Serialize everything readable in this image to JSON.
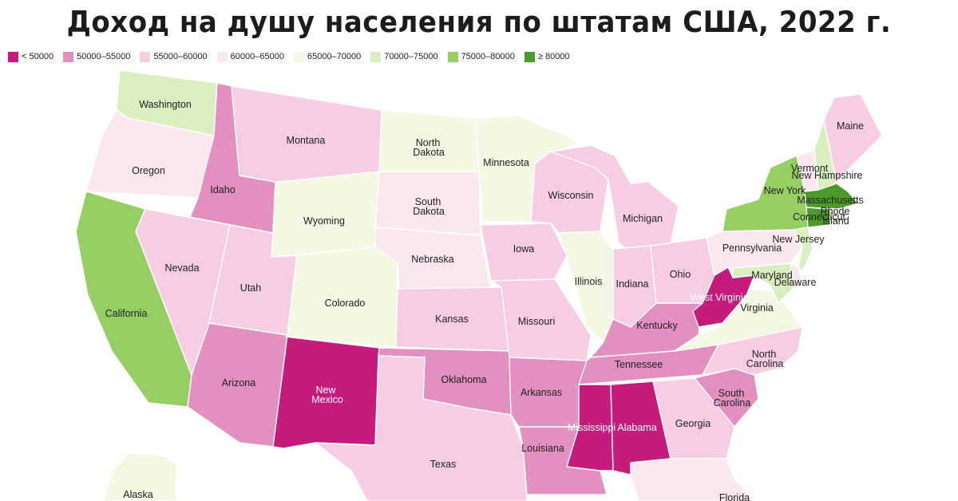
{
  "title": "Доход на душу населения по штатам США, 2022 г.",
  "colors": {
    "c0": "#c51b7d",
    "c1": "#e38fc0",
    "c2": "#f7cde4",
    "c3": "#fbe8ee",
    "c4": "#f4f7e2",
    "c5": "#d9efbf",
    "c6": "#95cf63",
    "c7": "#4c9a2a"
  },
  "legend": [
    {
      "label": "< 50000",
      "color": "#c51b7d"
    },
    {
      "label": "50000–55000",
      "color": "#e38fc0"
    },
    {
      "label": "55000–60000",
      "color": "#f7cde4"
    },
    {
      "label": "60000–65000",
      "color": "#fbe8ee"
    },
    {
      "label": "65000–70000",
      "color": "#f4f7e2"
    },
    {
      "label": "70000–75000",
      "color": "#d9efbf"
    },
    {
      "label": "75000–80000",
      "color": "#95cf63"
    },
    {
      "label": "≥ 80000",
      "color": "#4c9a2a"
    }
  ],
  "states": {
    "washington": {
      "name": "Washington",
      "bin": "70000–75000"
    },
    "oregon": {
      "name": "Oregon",
      "bin": "60000–65000"
    },
    "california": {
      "name": "California",
      "bin": "75000–80000"
    },
    "idaho": {
      "name": "Idaho",
      "bin": "50000–55000"
    },
    "nevada": {
      "name": "Nevada",
      "bin": "55000–60000"
    },
    "montana": {
      "name": "Montana",
      "bin": "55000–60000"
    },
    "wyoming": {
      "name": "Wyoming",
      "bin": "65000–70000"
    },
    "utah": {
      "name": "Utah",
      "bin": "55000–60000"
    },
    "arizona": {
      "name": "Arizona",
      "bin": "50000–55000"
    },
    "colorado": {
      "name": "Colorado",
      "bin": "65000–70000"
    },
    "new_mexico": {
      "name": "New Mexico",
      "bin": "< 50000"
    },
    "north_dakota": {
      "name": "North Dakota",
      "bin": "65000–70000"
    },
    "south_dakota": {
      "name": "South Dakota",
      "bin": "60000–65000"
    },
    "nebraska": {
      "name": "Nebraska",
      "bin": "60000–65000"
    },
    "kansas": {
      "name": "Kansas",
      "bin": "55000–60000"
    },
    "oklahoma": {
      "name": "Oklahoma",
      "bin": "50000–55000"
    },
    "texas": {
      "name": "Texas",
      "bin": "55000–60000"
    },
    "minnesota": {
      "name": "Minnesota",
      "bin": "65000–70000"
    },
    "iowa": {
      "name": "Iowa",
      "bin": "55000–60000"
    },
    "missouri": {
      "name": "Missouri",
      "bin": "55000–60000"
    },
    "arkansas": {
      "name": "Arkansas",
      "bin": "50000–55000"
    },
    "louisiana": {
      "name": "Louisiana",
      "bin": "50000–55000"
    },
    "wisconsin": {
      "name": "Wisconsin",
      "bin": "55000–60000"
    },
    "illinois": {
      "name": "Illinois",
      "bin": "65000–70000"
    },
    "michigan": {
      "name": "Michigan",
      "bin": "55000–60000"
    },
    "indiana": {
      "name": "Indiana",
      "bin": "55000–60000"
    },
    "ohio": {
      "name": "Ohio",
      "bin": "55000–60000"
    },
    "kentucky": {
      "name": "Kentucky",
      "bin": "50000–55000"
    },
    "tennessee": {
      "name": "Tennessee",
      "bin": "50000–55000"
    },
    "mississippi": {
      "name": "Mississippi",
      "bin": "< 50000"
    },
    "alabama": {
      "name": "Alabama",
      "bin": "< 50000"
    },
    "georgia": {
      "name": "Georgia",
      "bin": "55000–60000"
    },
    "florida": {
      "name": "Florida",
      "bin": "60000–65000"
    },
    "south_carolina": {
      "name": "South Carolina",
      "bin": "50000–55000"
    },
    "north_carolina": {
      "name": "North Carolina",
      "bin": "55000–60000"
    },
    "virginia": {
      "name": "Virginia",
      "bin": "65000–70000"
    },
    "west_virginia": {
      "name": "West Virginia",
      "bin": "< 50000"
    },
    "maryland": {
      "name": "Maryland",
      "bin": "70000–75000"
    },
    "delaware": {
      "name": "Delaware",
      "bin": "60000–65000"
    },
    "pennsylvania": {
      "name": "Pennsylvania",
      "bin": "60000–65000"
    },
    "new_jersey": {
      "name": "New Jersey",
      "bin": "70000–75000"
    },
    "new_york": {
      "name": "New York",
      "bin": "75000–80000"
    },
    "connecticut": {
      "name": "Connecticut",
      "bin": "≥ 80000"
    },
    "rhode_island": {
      "name": "Rhode Island",
      "bin": "65000–70000"
    },
    "massachusetts": {
      "name": "Massachusetts",
      "bin": "≥ 80000"
    },
    "vermont": {
      "name": "Vermont",
      "bin": "60000–65000"
    },
    "new_hampshire": {
      "name": "New Hampshire",
      "bin": "70000–75000"
    },
    "maine": {
      "name": "Maine",
      "bin": "55000–60000"
    },
    "alaska": {
      "name": "Alaska",
      "bin": "65000–70000"
    }
  },
  "labels": {
    "washington": "Washington",
    "oregon": "Oregon",
    "california": "California",
    "idaho": "Idaho",
    "nevada": "Nevada",
    "montana": "Montana",
    "wyoming": "Wyoming",
    "utah": "Utah",
    "arizona": "Arizona",
    "colorado": "Colorado",
    "new_mexico_1": "New",
    "new_mexico_2": "Mexico",
    "north_dakota_1": "North",
    "north_dakota_2": "Dakota",
    "south_dakota_1": "South",
    "south_dakota_2": "Dakota",
    "nebraska": "Nebraska",
    "kansas": "Kansas",
    "oklahoma": "Oklahoma",
    "texas": "Texas",
    "minnesota": "Minnesota",
    "iowa": "Iowa",
    "missouri": "Missouri",
    "arkansas": "Arkansas",
    "louisiana": "Louisiana",
    "wisconsin": "Wisconsin",
    "illinois": "Illinois",
    "michigan": "Michigan",
    "indiana": "Indiana",
    "ohio": "Ohio",
    "kentucky": "Kentucky",
    "tennessee": "Tennessee",
    "mississippi": "Mississippi",
    "alabama": "Alabama",
    "georgia": "Georgia",
    "florida": "Florida",
    "south_carolina_1": "South",
    "south_carolina_2": "Carolina",
    "north_carolina_1": "North",
    "north_carolina_2": "Carolina",
    "virginia": "Virginia",
    "west_virginia": "West Virginia",
    "maryland": "Maryland",
    "delaware": "Delaware",
    "pennsylvania": "Pennsylvania",
    "new_jersey": "New Jersey",
    "new_york": "New York",
    "connecticut": "Connecticut",
    "rhode_island_1": "Rhode",
    "rhode_island_2": "Island",
    "massachusetts": "Massachusetts",
    "vermont": "Vermont",
    "new_hampshire": "New Hampshire",
    "maine": "Maine",
    "alaska": "Alaska"
  }
}
